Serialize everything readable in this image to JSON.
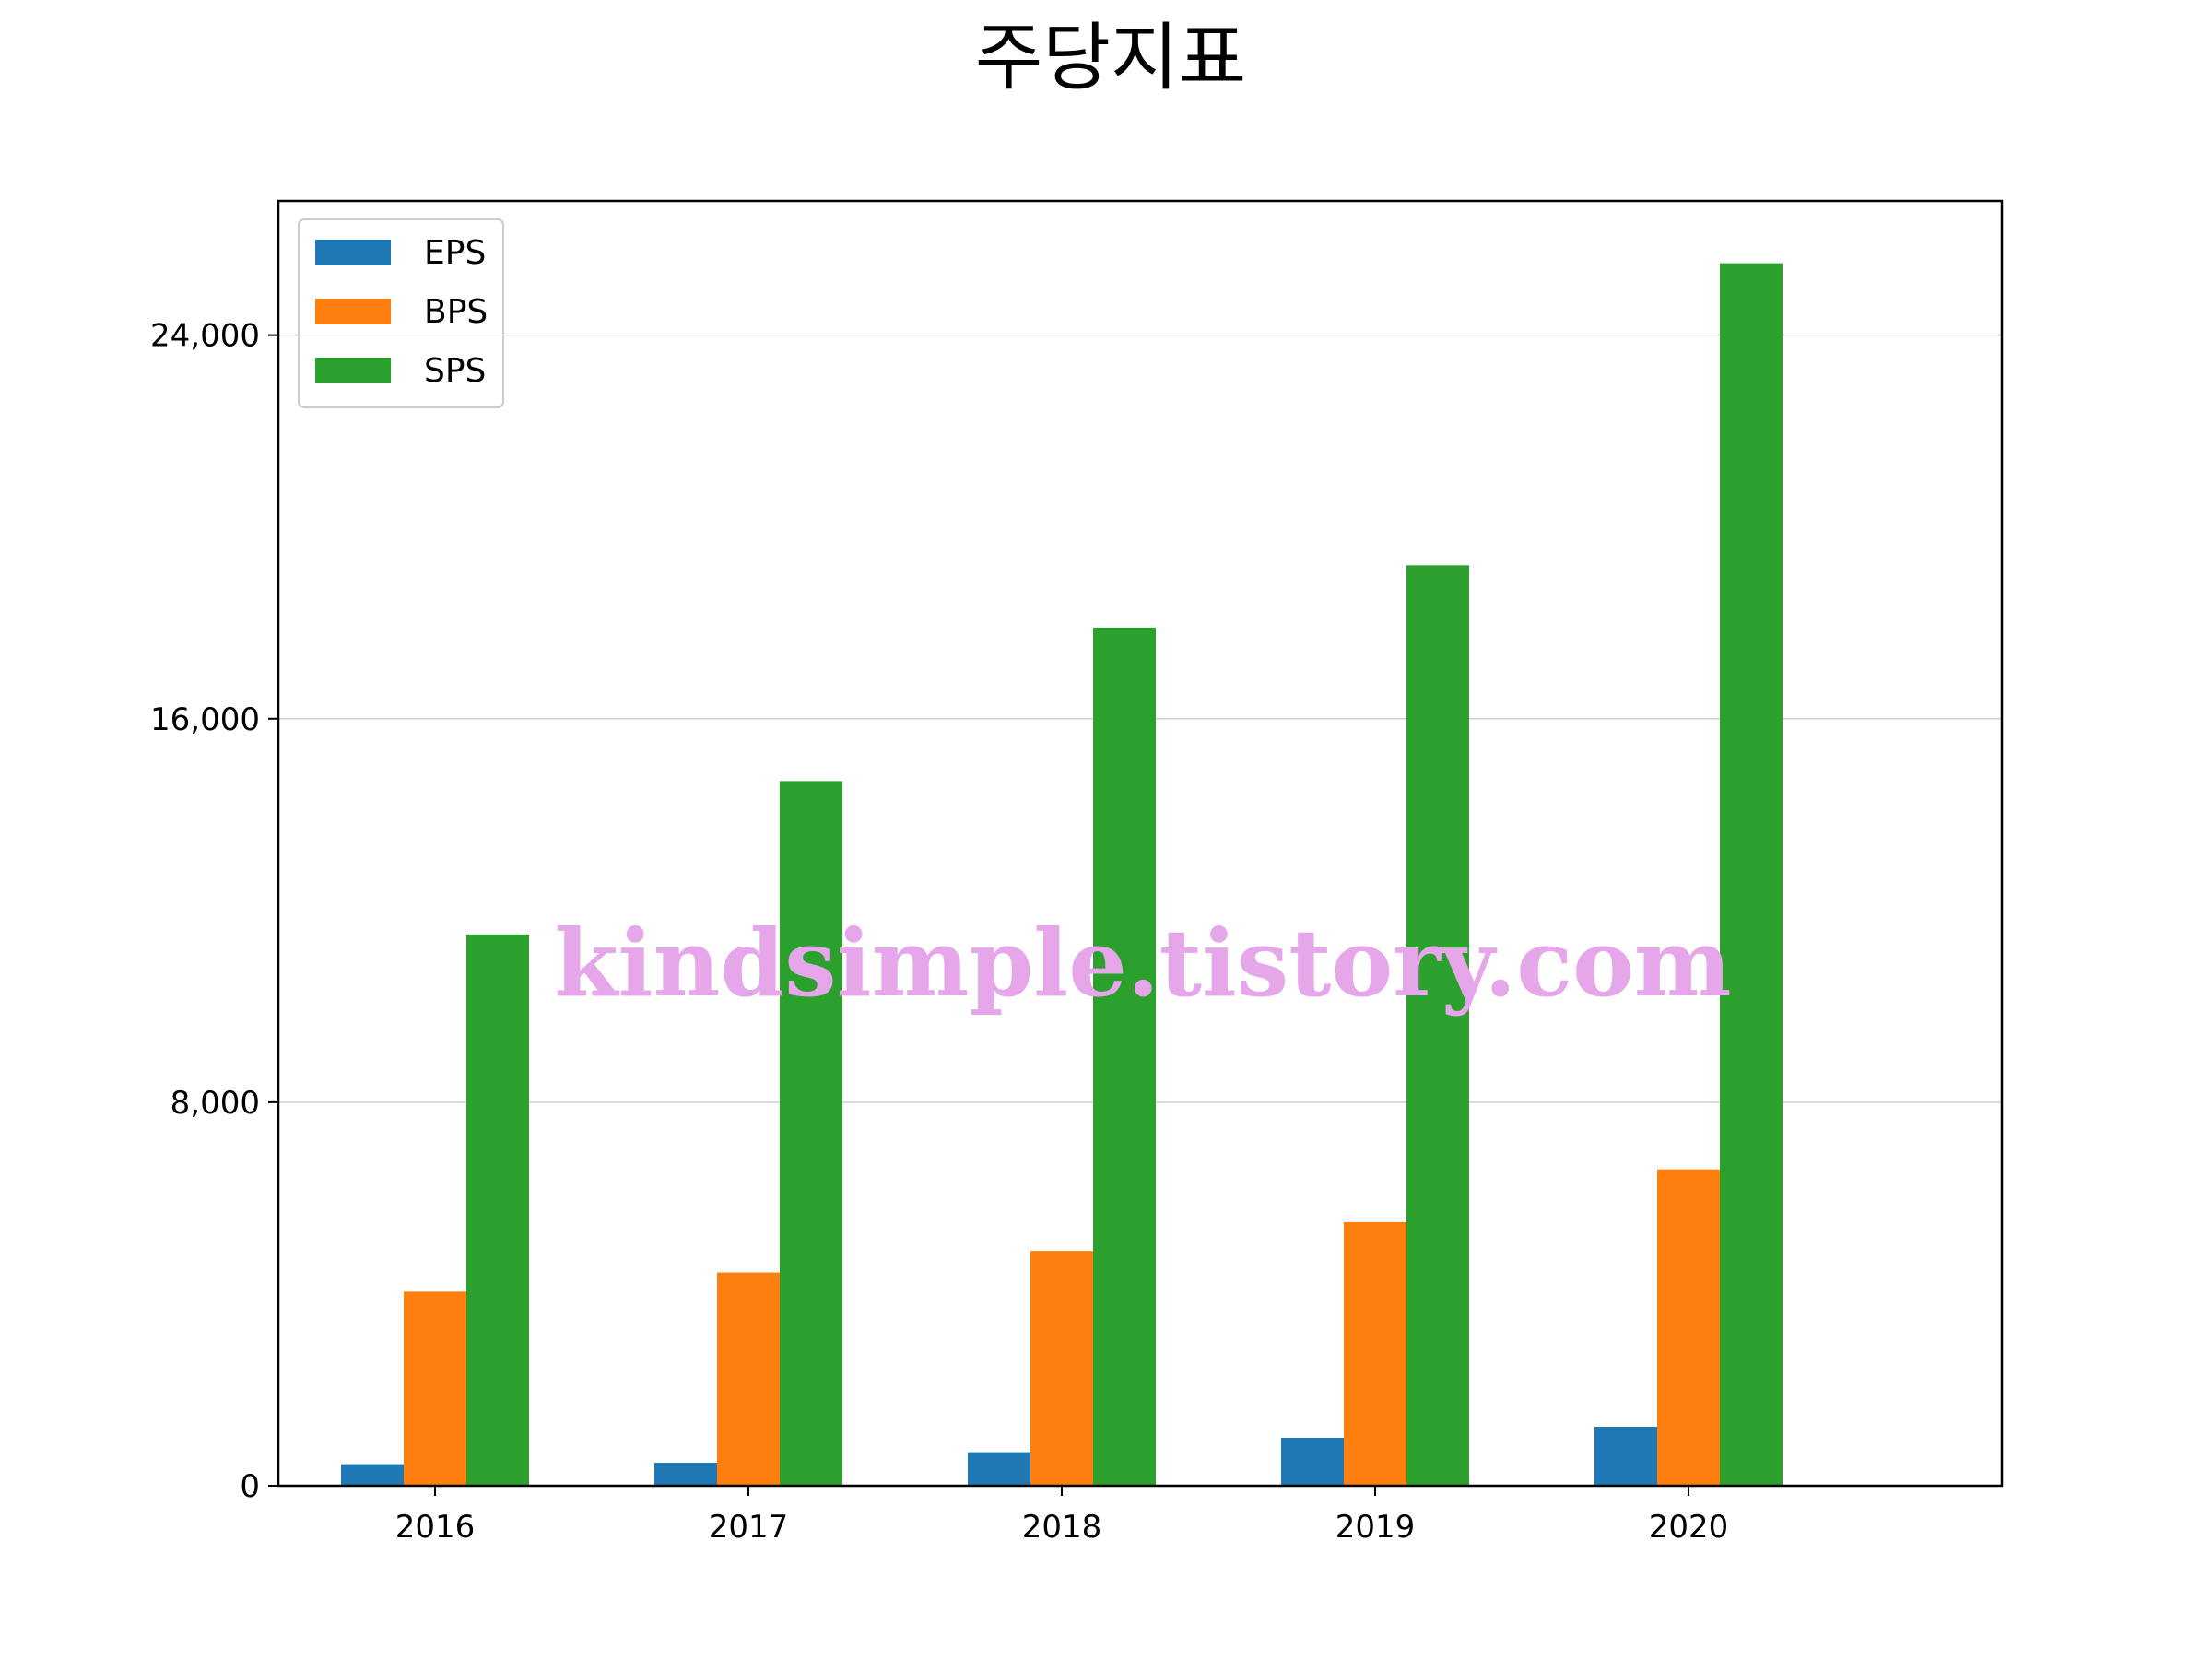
{
  "chart_data": {
    "type": "bar",
    "title": "주당지표",
    "xlabel": "",
    "ylabel": "",
    "categories": [
      "2016",
      "2017",
      "2018",
      "2019",
      "2020"
    ],
    "series": [
      {
        "name": "EPS",
        "color": "#1f77b4",
        "values": [
          450,
          480,
          700,
          1000,
          1230
        ]
      },
      {
        "name": "BPS",
        "color": "#ff7f0e",
        "values": [
          4050,
          4450,
          4900,
          5500,
          6600
        ]
      },
      {
        "name": "SPS",
        "color": "#2ca02c",
        "values": [
          11500,
          14700,
          17900,
          19200,
          25500
        ]
      }
    ],
    "ylim": [
      0,
      26800
    ],
    "yticks": [
      0,
      8000,
      16000,
      24000
    ],
    "ytick_labels": [
      "0",
      "8,000",
      "16,000",
      "24,000"
    ],
    "grid": "y",
    "legend_position": "top-left"
  },
  "watermark": "kindsimple.tistory.com"
}
